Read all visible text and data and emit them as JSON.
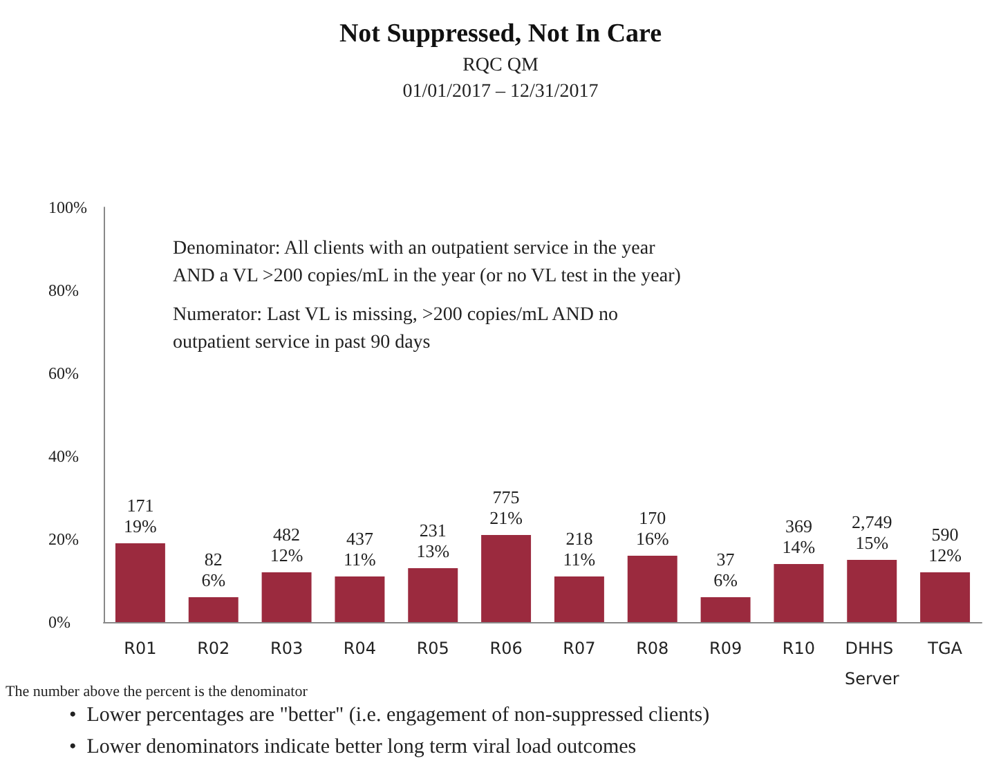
{
  "chart_data": {
    "type": "bar",
    "title": "Not Suppressed, Not In Care",
    "subtitle": "RQC QM\n01/01/2017 – 12/31/2017",
    "categories": [
      "R01",
      "R02",
      "R03",
      "R04",
      "R05",
      "R06",
      "R07",
      "R08",
      "R09",
      "R10",
      "DHHS Server",
      "TGA"
    ],
    "values": [
      19,
      6,
      12,
      11,
      13,
      21,
      11,
      16,
      6,
      14,
      15,
      12
    ],
    "value_labels": [
      "171\n19%",
      "82\n6%",
      "482\n12%",
      "437\n11%",
      "231\n13%",
      "775\n21%",
      "218\n11%",
      "170\n16%",
      "37\n6%",
      "369\n14%",
      "2,749\n15%",
      "590\n12%"
    ],
    "color": "#9b2a3e",
    "ylim": [
      0,
      100
    ],
    "yticks": [
      {
        "value": 0,
        "label": "0%"
      },
      {
        "value": 20,
        "label": "20%"
      },
      {
        "value": 40,
        "label": "40%"
      },
      {
        "value": 60,
        "label": "60%"
      },
      {
        "value": 80,
        "label": "80%"
      },
      {
        "value": 100,
        "label": "100%"
      }
    ],
    "grid": false,
    "annotations": [
      "Denominator: All clients with an outpatient service in the year\nAND a VL >200 copies/mL in the year (or no VL test in the year)",
      "Numerator: Last VL is missing, >200 copies/mL AND no\noutpatient service in past 90 days",
      "The number above the percent is the denominator",
      "•  Lower percentages are \"better\" (i.e. engagement of non-suppressed clients)",
      "•  Lower denominators indicate better long term viral load outcomes"
    ]
  }
}
